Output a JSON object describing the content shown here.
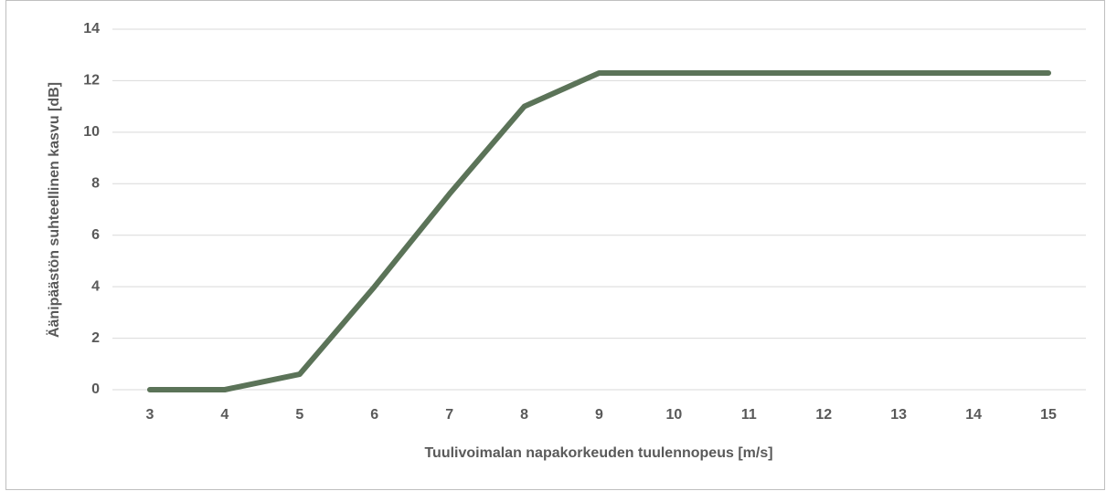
{
  "chart_data": {
    "type": "line",
    "xlabel": "Tuulivoimalan napakorkeuden tuulennopeus [m/s]",
    "ylabel": "Äänipäästön suhteellinen kasvu [dB]",
    "x": [
      3,
      4,
      5,
      6,
      7,
      8,
      9,
      10,
      11,
      12,
      13,
      14,
      15
    ],
    "series": [
      {
        "color": "#5b7358",
        "values": [
          0,
          0,
          0.6,
          4,
          7.6,
          11,
          12.3,
          12.3,
          12.3,
          12.3,
          12.3,
          12.3,
          12.3
        ]
      }
    ],
    "xlim": [
      2.5,
      15.5
    ],
    "xticks": [
      3,
      4,
      5,
      6,
      7,
      8,
      9,
      10,
      11,
      12,
      13,
      14,
      15
    ],
    "ylim": [
      0,
      14
    ],
    "yticks": [
      0,
      2,
      4,
      6,
      8,
      10,
      12,
      14
    ],
    "grid": true
  }
}
